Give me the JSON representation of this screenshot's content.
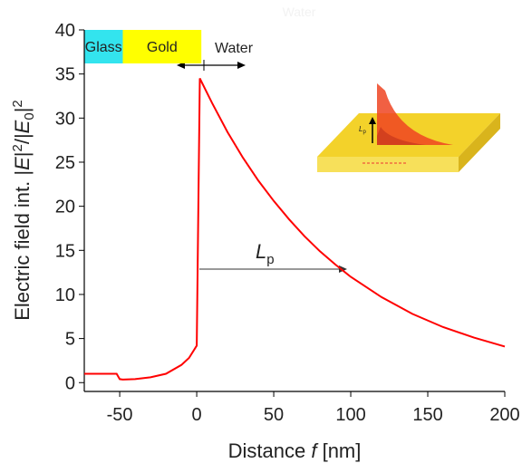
{
  "chart_data": {
    "type": "line",
    "title": "Water",
    "regions": [
      {
        "label": "Glass",
        "from": -73,
        "to": -48,
        "color": "#33e4ee"
      },
      {
        "label": "Gold",
        "from": -48,
        "to": 3,
        "color": "#ffff00"
      }
    ],
    "water_label": "Water",
    "series": [
      {
        "name": "Electric field intensity",
        "color": "#ff0000",
        "x": [
          -73,
          -52,
          -50,
          -48,
          -40,
          -30,
          -20,
          -10,
          -5,
          0,
          2,
          10,
          20,
          30,
          40,
          50,
          60,
          70,
          80,
          90,
          100,
          120,
          140,
          160,
          180,
          200
        ],
        "values": [
          1.0,
          1.0,
          0.4,
          0.35,
          0.4,
          0.6,
          1.0,
          2.0,
          2.8,
          4.2,
          34.5,
          31.7,
          28.4,
          25.5,
          22.9,
          20.6,
          18.5,
          16.6,
          14.9,
          13.4,
          12.0,
          9.7,
          7.8,
          6.3,
          5.1,
          4.1
        ]
      }
    ],
    "xlim": [
      -73,
      200
    ],
    "ylim": [
      -1,
      40
    ],
    "xticks": [
      -50,
      0,
      50,
      100,
      150,
      200
    ],
    "yticks": [
      0,
      5,
      10,
      15,
      20,
      25,
      30,
      35,
      40
    ],
    "xlabel": [
      "Distance ",
      "f",
      " [nm]"
    ],
    "ylabel": [
      "Electric field int. |",
      "E",
      "|",
      "2",
      "/|",
      "E",
      "0",
      "|",
      "2"
    ],
    "lp_label": [
      "L",
      "p"
    ],
    "inset_label": [
      "L",
      "p"
    ]
  }
}
